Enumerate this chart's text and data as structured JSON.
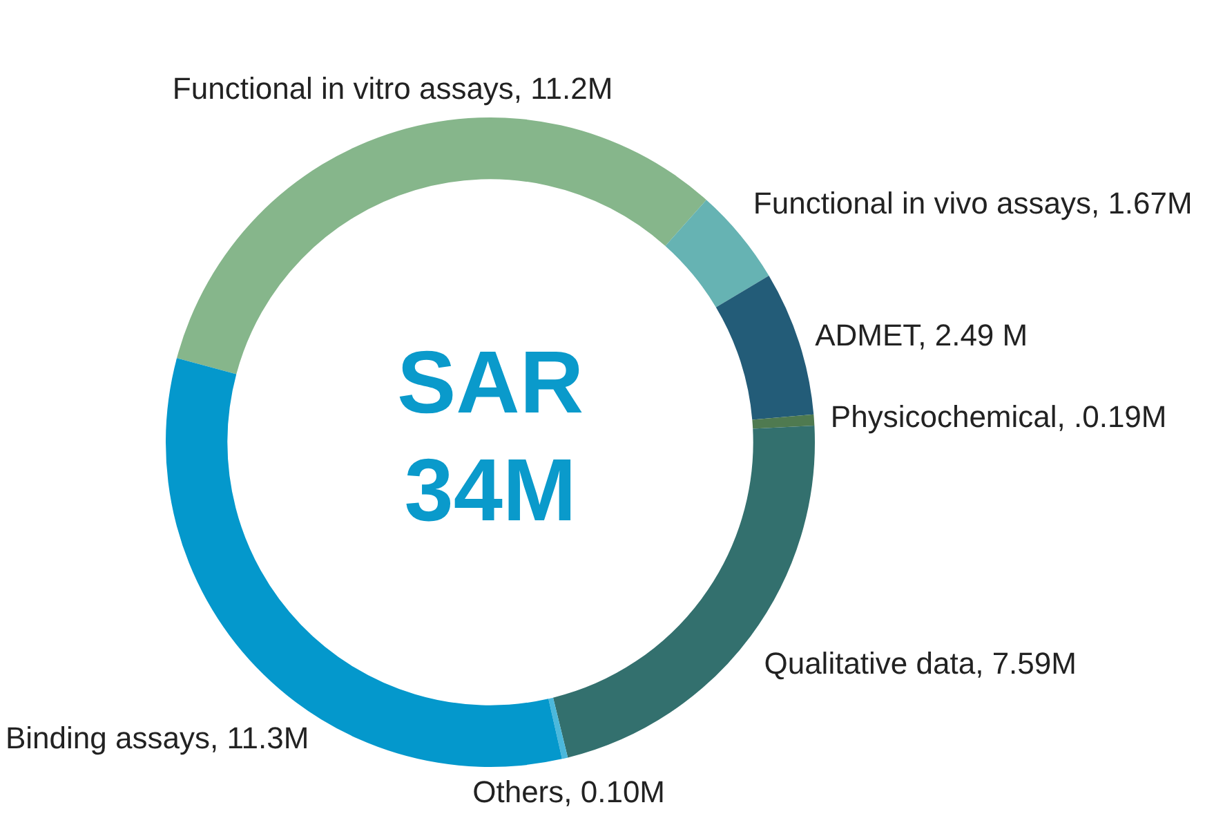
{
  "chart_data": {
    "type": "donut",
    "categories": [
      "Functional in vitro assays",
      "Functional in vivo assays",
      "ADMET",
      "Physicochemical",
      "Qualitative data",
      "Others",
      "Binding assays"
    ],
    "values": [
      11.2,
      1.67,
      2.49,
      0.19,
      7.59,
      0.1,
      11.3
    ],
    "value_labels": [
      "11.2M",
      "1.67M",
      "2.49 M",
      ".0.19M",
      "7.59M",
      "0.10M",
      "11.3M"
    ],
    "colors": [
      "#86b68b",
      "#66b3b3",
      "#235c78",
      "#4f7a50",
      "#33706e",
      "#4bb8dc",
      "#0498cc"
    ],
    "annotations": [
      "SAR",
      "34M"
    ],
    "legend": false
  }
}
